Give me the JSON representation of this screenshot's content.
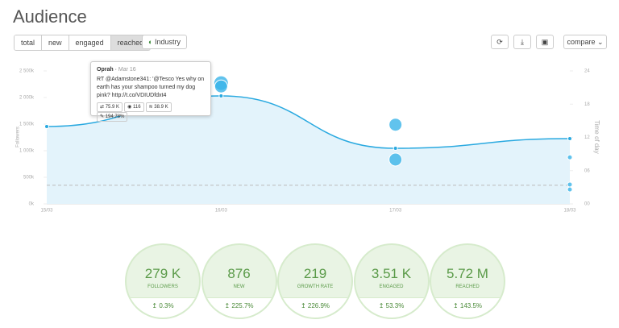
{
  "header": {
    "title": "Audience"
  },
  "tabs": [
    "total",
    "new",
    "engaged",
    "reached"
  ],
  "active_tab": 3,
  "industry_toggle": "Industry",
  "compare_button": "compare",
  "chart_data": {
    "type": "line",
    "y_label": "Followers",
    "y2_label": "Time of day",
    "categories": [
      "15/03",
      "16/03",
      "17/03",
      "18/03"
    ],
    "series": [
      {
        "name": "Followers",
        "color": "#29a9e0",
        "values": [
          1455000,
          2030000,
          1045000,
          1227000
        ]
      }
    ],
    "baseline": 350000,
    "ylim": [
      0,
      2500000
    ],
    "yticks": [
      {
        "value": 0,
        "label": "0k"
      },
      {
        "value": 500000,
        "label": "500k"
      },
      {
        "value": 1000000,
        "label": "1 000k"
      },
      {
        "value": 1500000,
        "label": "1 500k"
      },
      {
        "value": 2000000,
        "label": "2 000k"
      },
      {
        "value": 2500000,
        "label": "2 500k"
      }
    ],
    "y2lim": [
      0,
      24
    ],
    "y2ticks": [
      {
        "value": 0,
        "label": "00"
      },
      {
        "value": 6,
        "label": "06"
      },
      {
        "value": 12,
        "label": "12"
      },
      {
        "value": 18,
        "label": "18"
      },
      {
        "value": 24,
        "label": "24"
      }
    ],
    "bubbles": {
      "x": [
        1,
        1,
        2,
        2,
        3,
        3,
        3
      ],
      "y": [
        21.8,
        21.2,
        14.3,
        8.0,
        8.4,
        3.5,
        2.6
      ],
      "size": [
        9,
        8,
        8,
        8,
        3,
        3,
        3
      ]
    }
  },
  "tooltip": {
    "user": "Oprah",
    "date": "Mar 16",
    "text": "RT @Adamstone341: '@Tesco Yes why on earth has your shampoo turned my dog pink? http://t.co/VDIUDfdxt4",
    "stats": [
      "75.9 K",
      "116",
      "38.9 K",
      "194.78%"
    ]
  },
  "stats": [
    {
      "value": "279 K",
      "label": "FOLLOWERS",
      "change": "0.3%"
    },
    {
      "value": "876",
      "label": "NEW",
      "change": "225.7%"
    },
    {
      "value": "219",
      "label": "GROWTH RATE",
      "change": "226.9%"
    },
    {
      "value": "3.51 K",
      "label": "ENGAGED",
      "change": "53.3%"
    },
    {
      "value": "5.72 M",
      "label": "REACHED",
      "change": "143.5%"
    }
  ]
}
